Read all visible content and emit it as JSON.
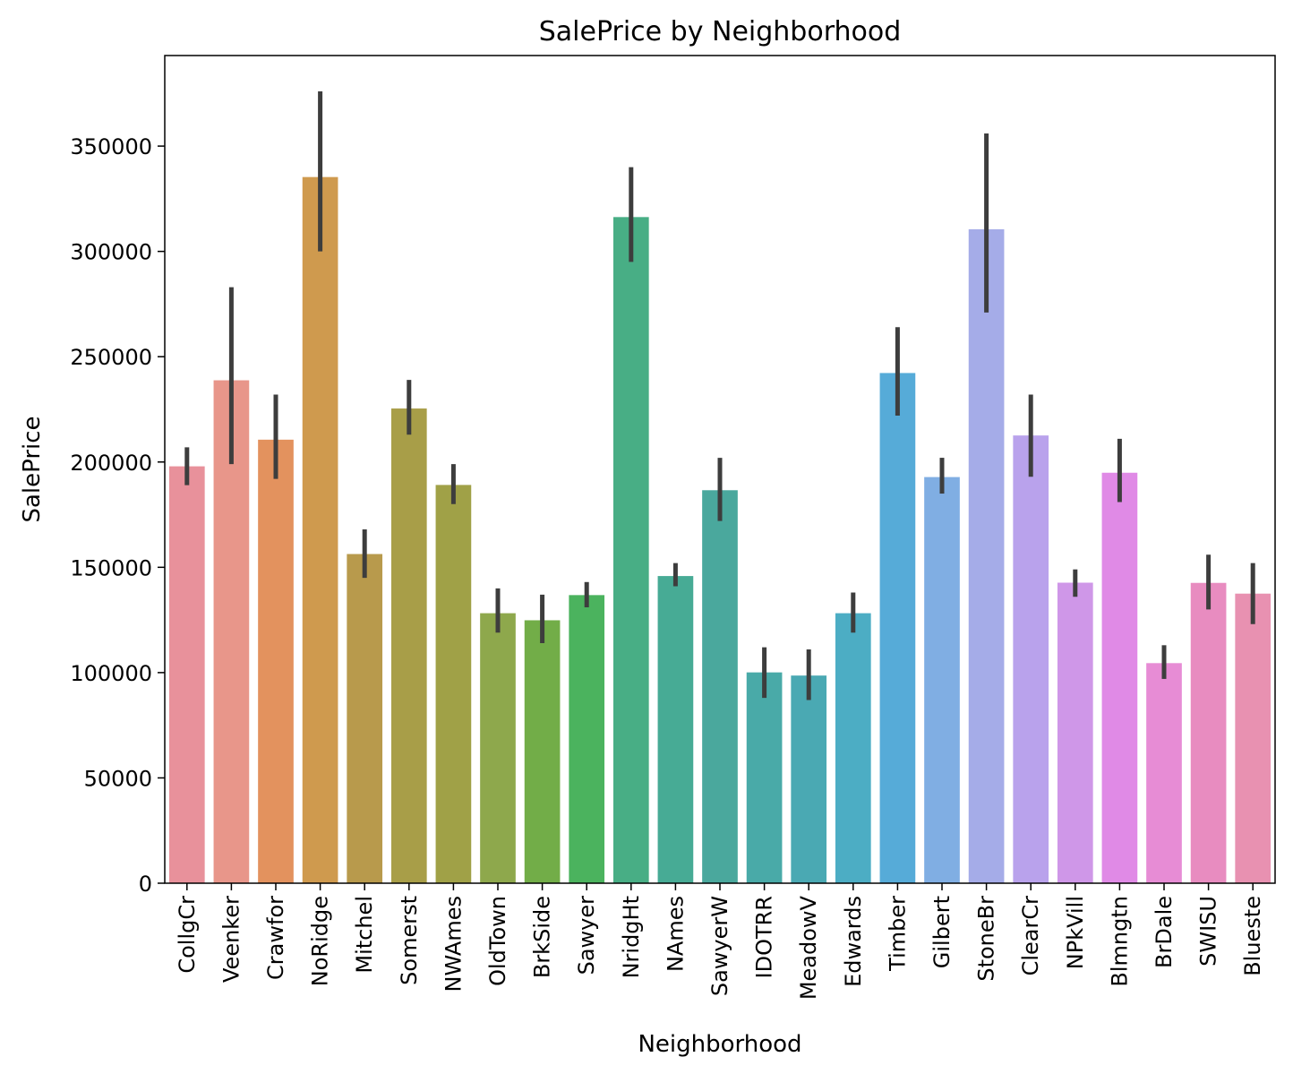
{
  "chart_data": {
    "type": "bar",
    "title": "SalePrice by Neighborhood",
    "xlabel": "Neighborhood",
    "ylabel": "SalePrice",
    "ylim": [
      0,
      393000
    ],
    "yticks": [
      0,
      50000,
      100000,
      150000,
      200000,
      250000,
      300000,
      350000
    ],
    "yticks_text": [
      "0",
      "50000",
      "100000",
      "150000",
      "200000",
      "250000",
      "300000",
      "350000"
    ],
    "grid": false,
    "legend": "none",
    "error_bar_color": "#3d3d3d",
    "categories": [
      "CollgCr",
      "Veenker",
      "Crawfor",
      "NoRidge",
      "Mitchel",
      "Somerst",
      "NWAmes",
      "OldTown",
      "BrkSide",
      "Sawyer",
      "NridgHt",
      "NAmes",
      "SawyerW",
      "IDOTRR",
      "MeadowV",
      "Edwards",
      "Timber",
      "Gilbert",
      "StoneBr",
      "ClearCr",
      "NPkVill",
      "Blmngtn",
      "BrDale",
      "SWISU",
      "Blueste"
    ],
    "values": [
      197950,
      238800,
      210600,
      335300,
      156300,
      225400,
      189100,
      128200,
      124850,
      136800,
      316300,
      145850,
      186600,
      100100,
      98600,
      128200,
      242250,
      192850,
      310500,
      212600,
      142700,
      194900,
      104500,
      142600,
      137500
    ],
    "error_low": [
      189000,
      199000,
      192000,
      300000,
      145000,
      213000,
      180000,
      119000,
      114000,
      131000,
      295000,
      141000,
      172000,
      88000,
      87000,
      119000,
      222000,
      185000,
      271000,
      193000,
      136000,
      181000,
      97000,
      130000,
      123000
    ],
    "error_high": [
      207000,
      283000,
      232000,
      376000,
      168000,
      239000,
      199000,
      140000,
      137000,
      143000,
      340000,
      152000,
      202000,
      112000,
      111000,
      138000,
      264000,
      202000,
      356000,
      232000,
      149000,
      211000,
      113000,
      156000,
      152000
    ],
    "colors": [
      "#e8919b",
      "#e8968a",
      "#e3925e",
      "#cf9a4e",
      "#b89a4c",
      "#a89e48",
      "#a0a147",
      "#8ea84c",
      "#72ad48",
      "#4bb35e",
      "#48ae85",
      "#47ab95",
      "#4aa89d",
      "#49aaa8",
      "#4aa9b3",
      "#4cadc4",
      "#56abd8",
      "#80aee3",
      "#a5ace8",
      "#b9a2ec",
      "#cf97e8",
      "#e08ae6",
      "#e78cd5",
      "#e88cc0",
      "#e891b1"
    ]
  }
}
